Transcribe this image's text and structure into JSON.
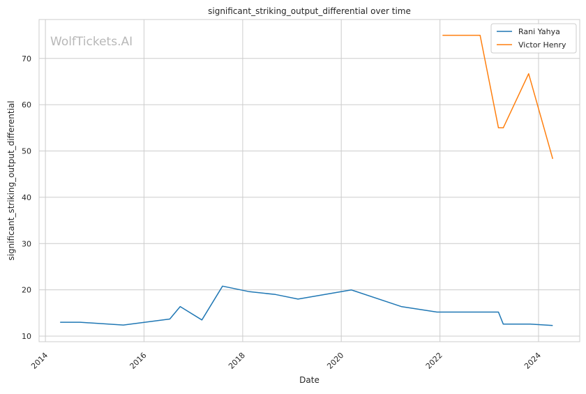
{
  "chart_data": {
    "type": "line",
    "title": "significant_striking_output_differential over time",
    "xlabel": "Date",
    "ylabel": "significant_striking_output_differential",
    "watermark": "WolfTickets.AI",
    "x_ticks": [
      "2014",
      "2016",
      "2018",
      "2020",
      "2022",
      "2024"
    ],
    "y_ticks": [
      "10",
      "20",
      "30",
      "40",
      "50",
      "60",
      "70"
    ],
    "xlim": [
      "2013-11-15",
      "2024-11-01"
    ],
    "ylim": [
      8.8,
      78.4
    ],
    "grid": true,
    "legend_position": "top-right",
    "series": [
      {
        "name": "Rani Yahya",
        "color": "#1f77b4",
        "points": [
          {
            "date": "2014-04-20",
            "value": 13.0
          },
          {
            "date": "2014-09-15",
            "value": 13.0
          },
          {
            "date": "2015-08-01",
            "value": 12.4
          },
          {
            "date": "2016-07-10",
            "value": 13.7
          },
          {
            "date": "2016-09-25",
            "value": 16.4
          },
          {
            "date": "2017-03-05",
            "value": 13.5
          },
          {
            "date": "2017-08-05",
            "value": 20.8
          },
          {
            "date": "2018-02-20",
            "value": 19.6
          },
          {
            "date": "2018-09-01",
            "value": 19.0
          },
          {
            "date": "2019-02-15",
            "value": 18.0
          },
          {
            "date": "2020-03-15",
            "value": 20.0
          },
          {
            "date": "2021-03-20",
            "value": 16.4
          },
          {
            "date": "2021-12-10",
            "value": 15.2
          },
          {
            "date": "2023-03-10",
            "value": 15.2
          },
          {
            "date": "2023-04-15",
            "value": 12.6
          },
          {
            "date": "2023-11-01",
            "value": 12.6
          },
          {
            "date": "2024-04-15",
            "value": 12.3
          }
        ]
      },
      {
        "name": "Victor Henry",
        "color": "#ff7f0e",
        "points": [
          {
            "date": "2022-01-20",
            "value": 75.0
          },
          {
            "date": "2022-10-25",
            "value": 75.0
          },
          {
            "date": "2023-03-10",
            "value": 55.0
          },
          {
            "date": "2023-04-15",
            "value": 55.0
          },
          {
            "date": "2023-10-20",
            "value": 66.7
          },
          {
            "date": "2024-04-15",
            "value": 48.3
          }
        ]
      }
    ]
  }
}
